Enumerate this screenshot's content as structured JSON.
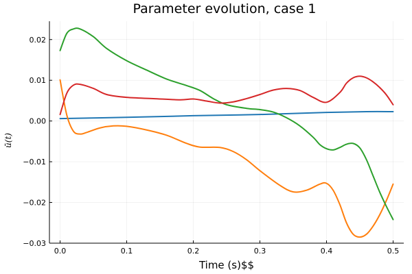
{
  "chart_data": {
    "type": "line",
    "title": "Parameter evolution, case 1",
    "xlabel": "Time (s)$$",
    "ylabel": "ū(t)",
    "xlim": [
      -0.016,
      0.516
    ],
    "ylim": [
      -0.03,
      0.0245
    ],
    "xticks": [
      0.0,
      0.1,
      0.2,
      0.3,
      0.4,
      0.5
    ],
    "xtick_labels": [
      "0.0",
      "0.1",
      "0.2",
      "0.3",
      "0.4",
      "0.5"
    ],
    "yticks": [
      -0.03,
      -0.02,
      -0.01,
      0.0,
      0.01,
      0.02
    ],
    "ytick_labels": [
      "−0.03",
      "−0.02",
      "−0.01",
      "0.00",
      "0.01",
      "0.02"
    ],
    "grid": true,
    "legend": "none",
    "series": [
      {
        "name": "series-1",
        "color": "#1f77b4",
        "x": [
          0.0,
          0.1,
          0.2,
          0.3,
          0.4,
          0.46,
          0.5
        ],
        "y": [
          0.0006,
          0.0009,
          0.0013,
          0.0016,
          0.0021,
          0.0023,
          0.0023
        ]
      },
      {
        "name": "series-2",
        "color": "#ff7f0e",
        "x": [
          0.0,
          0.01,
          0.02,
          0.03,
          0.04,
          0.06,
          0.08,
          0.1,
          0.13,
          0.16,
          0.19,
          0.21,
          0.24,
          0.26,
          0.28,
          0.3,
          0.33,
          0.35,
          0.37,
          0.39,
          0.4,
          0.41,
          0.42,
          0.43,
          0.44,
          0.45,
          0.46,
          0.47,
          0.48,
          0.49,
          0.5
        ],
        "y": [
          0.0101,
          0.0015,
          -0.0025,
          -0.0032,
          -0.0028,
          -0.0017,
          -0.0012,
          -0.0013,
          -0.0022,
          -0.0035,
          -0.0055,
          -0.0064,
          -0.0065,
          -0.0075,
          -0.0095,
          -0.0122,
          -0.0158,
          -0.0174,
          -0.017,
          -0.0155,
          -0.0153,
          -0.017,
          -0.0205,
          -0.025,
          -0.0278,
          -0.0285,
          -0.0278,
          -0.0258,
          -0.023,
          -0.0195,
          -0.0155
        ]
      },
      {
        "name": "series-3",
        "color": "#2ca02c",
        "x": [
          0.0,
          0.01,
          0.02,
          0.03,
          0.05,
          0.07,
          0.1,
          0.13,
          0.16,
          0.19,
          0.21,
          0.23,
          0.25,
          0.28,
          0.3,
          0.32,
          0.34,
          0.36,
          0.38,
          0.39,
          0.4,
          0.41,
          0.42,
          0.43,
          0.44,
          0.45,
          0.46,
          0.47,
          0.48,
          0.49,
          0.5
        ],
        "y": [
          0.0173,
          0.0215,
          0.0226,
          0.0226,
          0.0207,
          0.0178,
          0.0148,
          0.0125,
          0.0103,
          0.0087,
          0.0075,
          0.0055,
          0.004,
          0.0031,
          0.0028,
          0.0022,
          0.0008,
          -0.0012,
          -0.004,
          -0.0058,
          -0.0068,
          -0.0071,
          -0.0065,
          -0.0057,
          -0.0055,
          -0.0066,
          -0.0095,
          -0.0135,
          -0.0175,
          -0.021,
          -0.0242
        ]
      },
      {
        "name": "series-4",
        "color": "#d62728",
        "x": [
          0.0,
          0.01,
          0.02,
          0.03,
          0.05,
          0.07,
          0.1,
          0.14,
          0.18,
          0.2,
          0.22,
          0.24,
          0.26,
          0.28,
          0.3,
          0.32,
          0.34,
          0.36,
          0.38,
          0.4,
          0.42,
          0.43,
          0.44,
          0.45,
          0.46,
          0.47,
          0.48,
          0.49,
          0.5
        ],
        "y": [
          0.0016,
          0.0068,
          0.0088,
          0.009,
          0.008,
          0.0065,
          0.0058,
          0.0055,
          0.0052,
          0.0054,
          0.0049,
          0.0044,
          0.0047,
          0.0055,
          0.0065,
          0.0076,
          0.008,
          0.0075,
          0.0058,
          0.0046,
          0.007,
          0.0093,
          0.0106,
          0.011,
          0.0106,
          0.0096,
          0.0082,
          0.0064,
          0.004
        ]
      }
    ]
  }
}
